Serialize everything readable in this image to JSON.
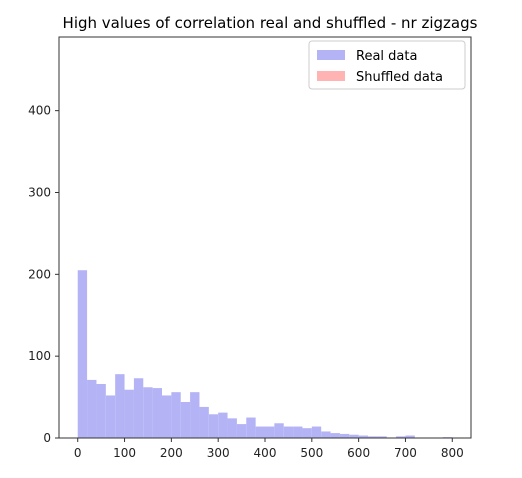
{
  "chart_data": {
    "type": "bar",
    "title": "High values of correlation real and shuffled - nr zigzags",
    "xlabel": "",
    "ylabel": "",
    "xlim": [
      -40,
      840
    ],
    "ylim": [
      0,
      490
    ],
    "x_ticks": [
      0,
      100,
      200,
      300,
      400,
      500,
      600,
      700,
      800
    ],
    "y_ticks": [
      0,
      100,
      200,
      300,
      400
    ],
    "bin_width": 20,
    "legend_position": "top-right",
    "grid": false,
    "series": [
      {
        "name": "Real data",
        "color": "#b3b3f5",
        "bins": [
          {
            "x0": 0,
            "x1": 20,
            "count": 205
          },
          {
            "x0": 20,
            "x1": 40,
            "count": 71
          },
          {
            "x0": 40,
            "x1": 60,
            "count": 66
          },
          {
            "x0": 60,
            "x1": 80,
            "count": 52
          },
          {
            "x0": 80,
            "x1": 100,
            "count": 78
          },
          {
            "x0": 100,
            "x1": 120,
            "count": 59
          },
          {
            "x0": 120,
            "x1": 140,
            "count": 73
          },
          {
            "x0": 140,
            "x1": 160,
            "count": 62
          },
          {
            "x0": 160,
            "x1": 180,
            "count": 61
          },
          {
            "x0": 180,
            "x1": 200,
            "count": 52
          },
          {
            "x0": 200,
            "x1": 220,
            "count": 56
          },
          {
            "x0": 220,
            "x1": 240,
            "count": 44
          },
          {
            "x0": 240,
            "x1": 260,
            "count": 56
          },
          {
            "x0": 260,
            "x1": 280,
            "count": 38
          },
          {
            "x0": 280,
            "x1": 300,
            "count": 29
          },
          {
            "x0": 300,
            "x1": 320,
            "count": 31
          },
          {
            "x0": 320,
            "x1": 340,
            "count": 24
          },
          {
            "x0": 340,
            "x1": 360,
            "count": 17
          },
          {
            "x0": 360,
            "x1": 380,
            "count": 25
          },
          {
            "x0": 380,
            "x1": 400,
            "count": 14
          },
          {
            "x0": 400,
            "x1": 420,
            "count": 14
          },
          {
            "x0": 420,
            "x1": 440,
            "count": 18
          },
          {
            "x0": 440,
            "x1": 460,
            "count": 14
          },
          {
            "x0": 460,
            "x1": 480,
            "count": 14
          },
          {
            "x0": 480,
            "x1": 500,
            "count": 12
          },
          {
            "x0": 500,
            "x1": 520,
            "count": 14
          },
          {
            "x0": 520,
            "x1": 540,
            "count": 8
          },
          {
            "x0": 540,
            "x1": 560,
            "count": 6
          },
          {
            "x0": 560,
            "x1": 580,
            "count": 5
          },
          {
            "x0": 580,
            "x1": 600,
            "count": 4
          },
          {
            "x0": 600,
            "x1": 620,
            "count": 3
          },
          {
            "x0": 620,
            "x1": 640,
            "count": 2
          },
          {
            "x0": 640,
            "x1": 660,
            "count": 2
          },
          {
            "x0": 680,
            "x1": 700,
            "count": 2
          },
          {
            "x0": 700,
            "x1": 720,
            "count": 3
          },
          {
            "x0": 780,
            "x1": 800,
            "count": 1
          }
        ]
      },
      {
        "name": "Shuffled data",
        "color": "#ffb3b3",
        "bins": []
      }
    ]
  }
}
